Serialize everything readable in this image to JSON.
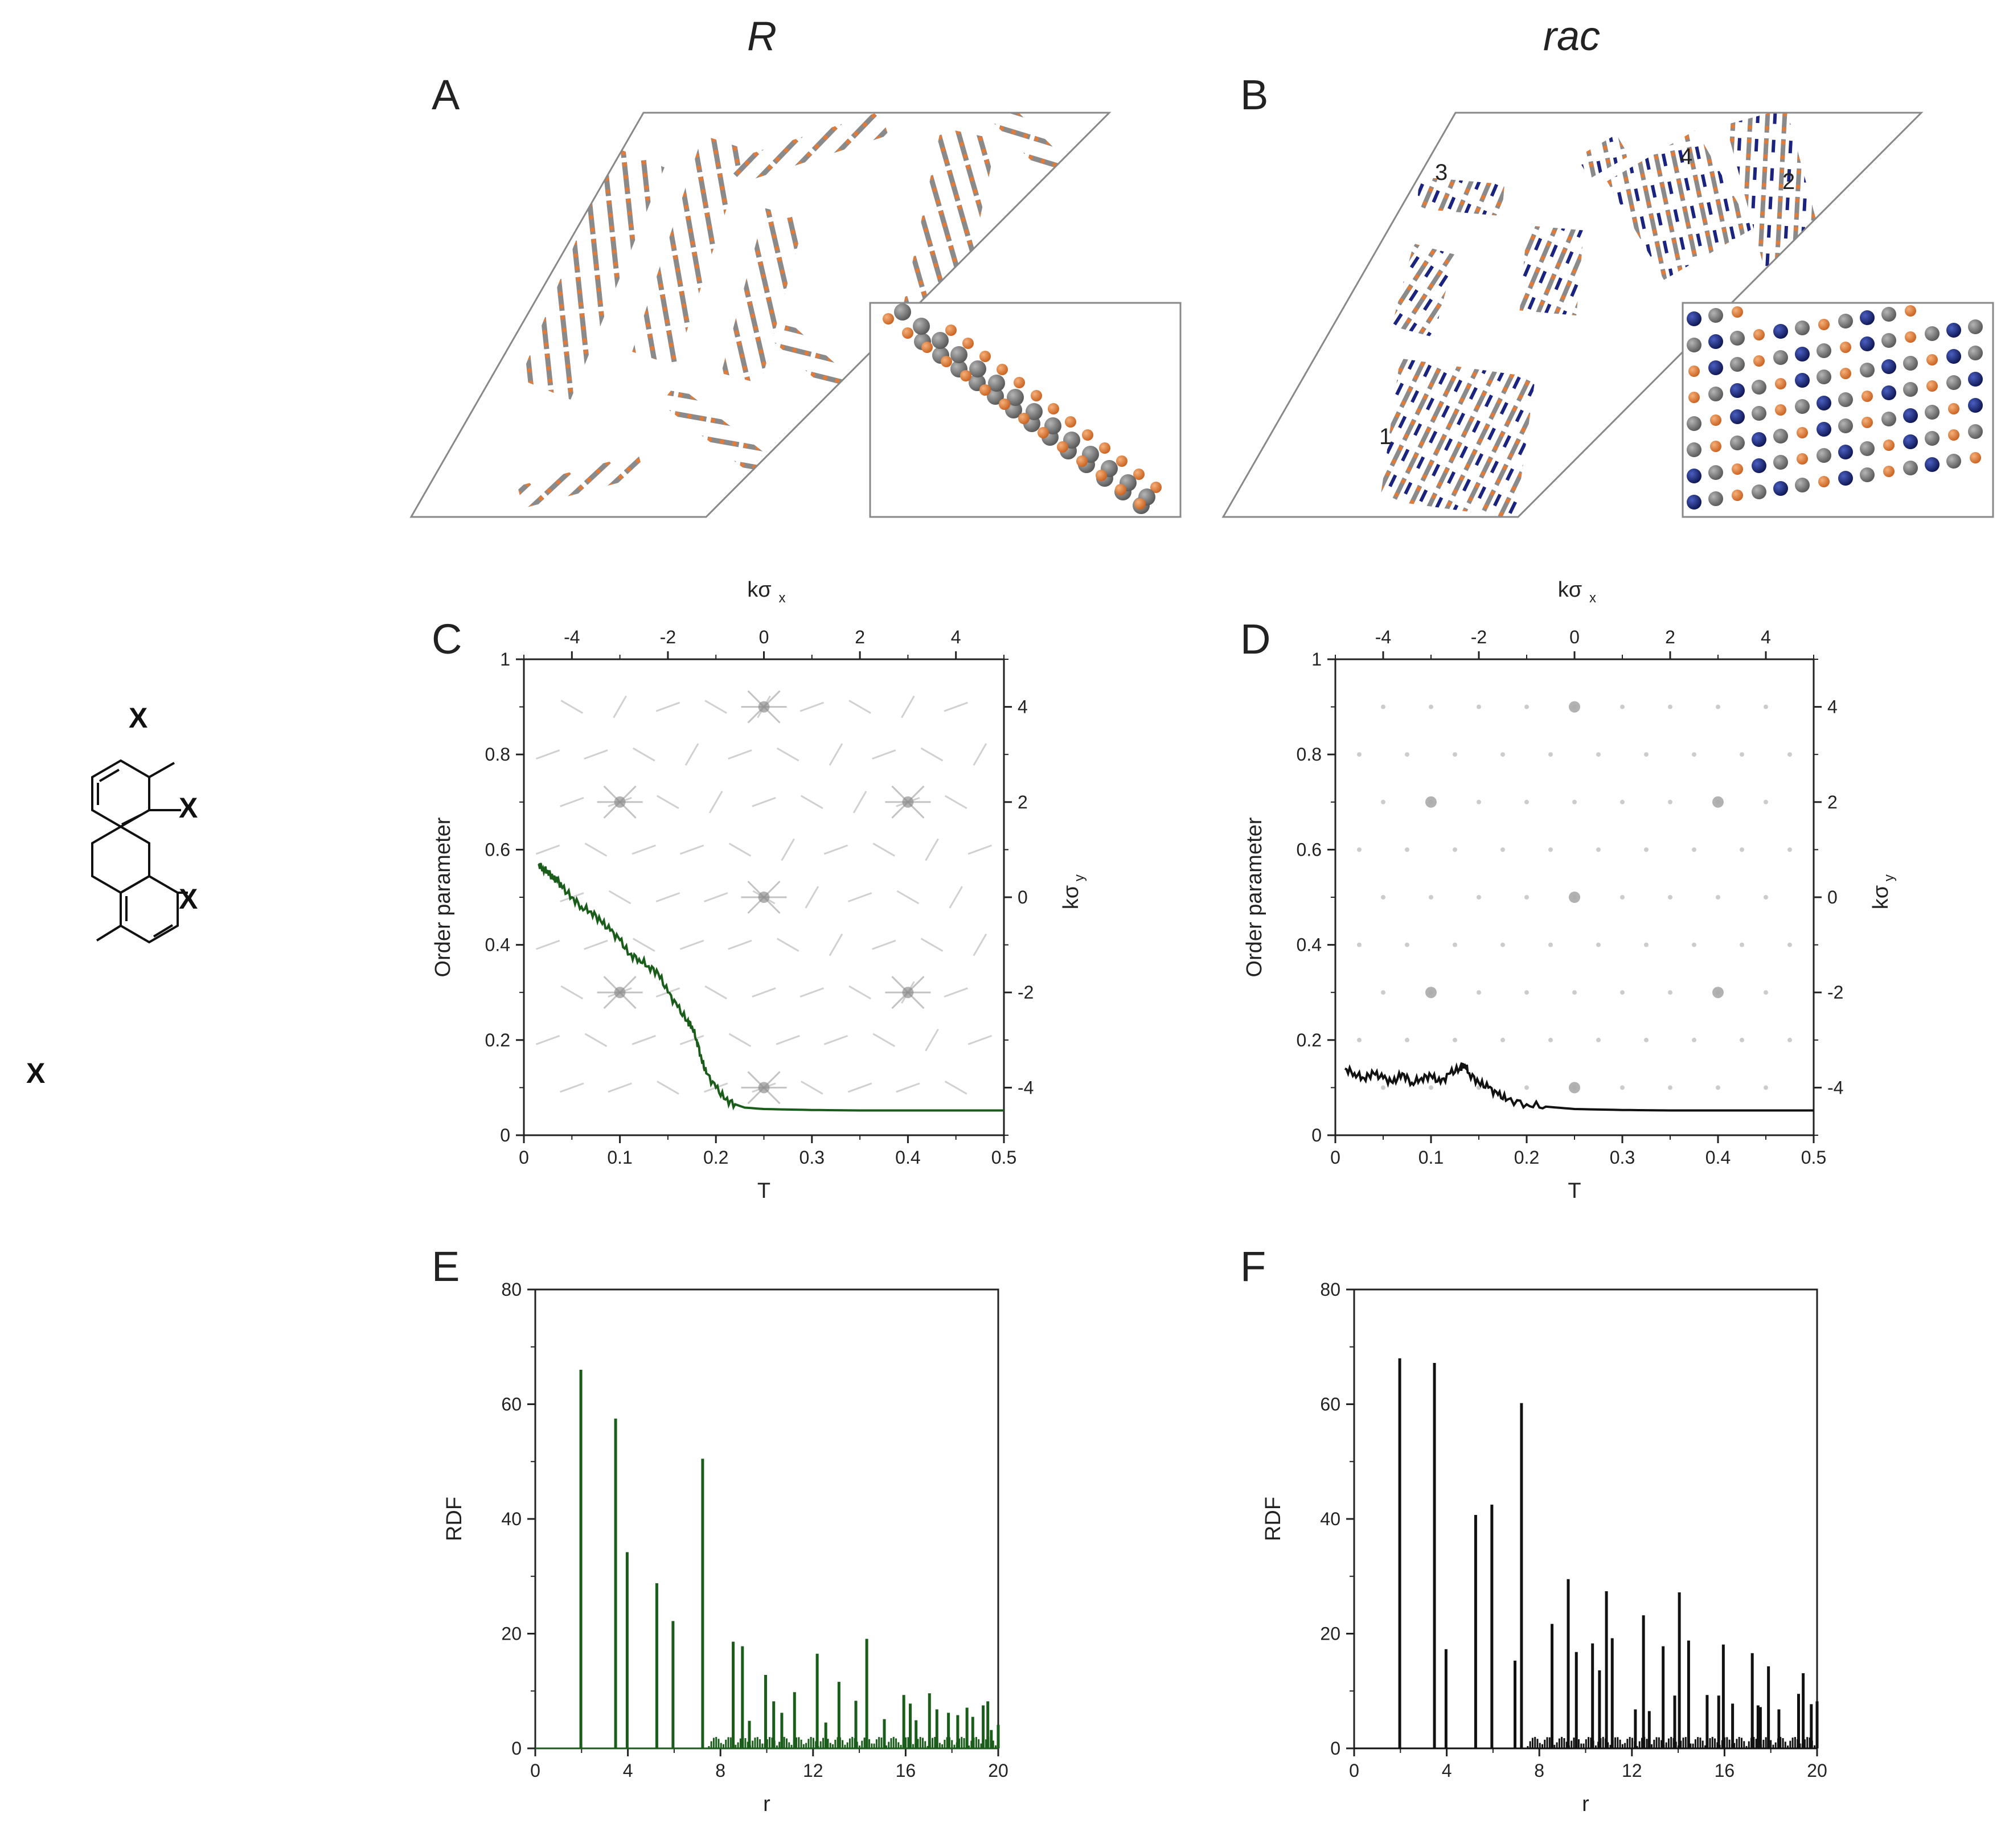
{
  "titles": {
    "left": "R",
    "right": "rac"
  },
  "panel_letters": [
    "A",
    "B",
    "C",
    "D",
    "E",
    "F"
  ],
  "molecule": {
    "substituent": "X"
  },
  "cluster_labels": [
    "1",
    "2",
    "3",
    "4"
  ],
  "chart_data": [
    {
      "id": "C",
      "type": "line",
      "title": "",
      "xlabel": "T",
      "ylabel": "Order parameter",
      "xlim": [
        0,
        0.5
      ],
      "ylim": [
        0,
        1
      ],
      "x_ticks": [
        "0",
        "0.1",
        "0.2",
        "0.3",
        "0.4",
        "0.5"
      ],
      "y_ticks": [
        "0",
        "0.2",
        "0.4",
        "0.6",
        "0.8",
        "1"
      ],
      "top_axis": {
        "label": "kσ",
        "sub": "x",
        "range": [
          -5,
          5
        ],
        "ticks": [
          "-4",
          "-2",
          "0",
          "2",
          "4"
        ]
      },
      "right_axis": {
        "label": "kσ",
        "sub": "y",
        "range": [
          -5,
          5
        ],
        "ticks": [
          "-4",
          "-2",
          "0",
          "2",
          "4"
        ]
      },
      "color": "#1a5c1a",
      "series": [
        {
          "name": "order parameter (R)",
          "x": [
            0.015,
            0.02,
            0.025,
            0.03,
            0.035,
            0.04,
            0.05,
            0.06,
            0.07,
            0.08,
            0.09,
            0.1,
            0.11,
            0.12,
            0.13,
            0.14,
            0.15,
            0.16,
            0.17,
            0.175,
            0.18,
            0.185,
            0.19,
            0.2,
            0.21,
            0.22,
            0.23,
            0.25,
            0.3,
            0.35,
            0.4,
            0.45,
            0.5
          ],
          "y": [
            0.57,
            0.56,
            0.555,
            0.54,
            0.535,
            0.52,
            0.5,
            0.48,
            0.47,
            0.45,
            0.43,
            0.41,
            0.38,
            0.37,
            0.355,
            0.34,
            0.3,
            0.27,
            0.24,
            0.23,
            0.2,
            0.16,
            0.13,
            0.1,
            0.075,
            0.065,
            0.058,
            0.055,
            0.053,
            0.052,
            0.052,
            0.052,
            0.052
          ]
        }
      ]
    },
    {
      "id": "D",
      "type": "line",
      "title": "",
      "xlabel": "T",
      "ylabel": "Order parameter",
      "xlim": [
        0,
        0.5
      ],
      "ylim": [
        0,
        1
      ],
      "x_ticks": [
        "0",
        "0.1",
        "0.2",
        "0.3",
        "0.4",
        "0.5"
      ],
      "y_ticks": [
        "0",
        "0.2",
        "0.4",
        "0.6",
        "0.8",
        "1"
      ],
      "top_axis": {
        "label": "kσ",
        "sub": "x",
        "range": [
          -5,
          5
        ],
        "ticks": [
          "-4",
          "-2",
          "0",
          "2",
          "4"
        ]
      },
      "right_axis": {
        "label": "kσ",
        "sub": "y",
        "range": [
          -5,
          5
        ],
        "ticks": [
          "-4",
          "-2",
          "0",
          "2",
          "4"
        ]
      },
      "color": "#111111",
      "series": [
        {
          "name": "order parameter (rac)",
          "x": [
            0.01,
            0.02,
            0.03,
            0.04,
            0.05,
            0.06,
            0.07,
            0.08,
            0.09,
            0.1,
            0.11,
            0.12,
            0.13,
            0.135,
            0.14,
            0.15,
            0.16,
            0.17,
            0.18,
            0.2,
            0.22,
            0.25,
            0.3,
            0.35,
            0.4,
            0.45,
            0.5
          ],
          "y": [
            0.14,
            0.13,
            0.12,
            0.13,
            0.12,
            0.11,
            0.13,
            0.11,
            0.12,
            0.125,
            0.11,
            0.13,
            0.14,
            0.15,
            0.13,
            0.11,
            0.1,
            0.085,
            0.075,
            0.065,
            0.06,
            0.055,
            0.053,
            0.052,
            0.052,
            0.052,
            0.052
          ]
        }
      ]
    },
    {
      "id": "E",
      "type": "bar",
      "title": "",
      "xlabel": "r",
      "ylabel": "RDF",
      "xlim": [
        0,
        20
      ],
      "ylim": [
        0,
        80
      ],
      "x_ticks": [
        "0",
        "4",
        "8",
        "12",
        "16",
        "20"
      ],
      "y_ticks": [
        "0",
        "20",
        "40",
        "60",
        "80"
      ],
      "color": "#1a5c1a",
      "x": [
        1.97,
        3.47,
        3.97,
        5.25,
        5.95,
        7.23,
        8.55,
        8.95,
        9.25,
        9.95,
        10.3,
        10.65,
        11.2,
        12.18,
        12.55,
        13.12,
        13.85,
        14.32,
        15.08,
        15.92,
        16.2,
        16.45,
        17.03,
        17.35,
        17.85,
        18.25,
        18.65,
        18.9,
        19.35,
        19.55,
        19.7,
        20.0
      ],
      "values": [
        66,
        57.5,
        34.2,
        28.8,
        22.2,
        50.5,
        18.6,
        17.8,
        4.8,
        12.8,
        8.2,
        6.2,
        9.8,
        16.5,
        4.5,
        11.6,
        8.3,
        19.1,
        5.1,
        9.3,
        7.8,
        4.9,
        9.6,
        6.8,
        6.2,
        5.8,
        7.1,
        5.5,
        7.5,
        8.2,
        3.2,
        4.1
      ]
    },
    {
      "id": "F",
      "type": "bar",
      "title": "",
      "xlabel": "r",
      "ylabel": "RDF",
      "xlim": [
        0,
        20
      ],
      "ylim": [
        0,
        80
      ],
      "x_ticks": [
        "0",
        "4",
        "8",
        "12",
        "16",
        "20"
      ],
      "y_ticks": [
        "0",
        "20",
        "40",
        "60",
        "80"
      ],
      "color": "#111111",
      "x": [
        1.97,
        3.47,
        3.97,
        5.25,
        5.95,
        6.95,
        7.23,
        8.55,
        9.25,
        9.6,
        10.3,
        10.6,
        10.9,
        11.15,
        12.15,
        12.5,
        12.75,
        13.35,
        13.85,
        14.05,
        14.45,
        15.25,
        15.75,
        15.95,
        16.35,
        17.2,
        17.45,
        17.55,
        17.9,
        18.35,
        19.2,
        19.4,
        19.75,
        20.0
      ],
      "values": [
        68,
        67.2,
        17.3,
        40.7,
        42.5,
        15.3,
        60.2,
        21.7,
        29.5,
        16.8,
        18.3,
        13.6,
        27.4,
        19.2,
        6.8,
        23.2,
        6.5,
        17.8,
        9.2,
        27.2,
        18.8,
        9.3,
        9.2,
        18.1,
        7.8,
        16.6,
        7.5,
        7.2,
        14.3,
        6.8,
        9.5,
        13.1,
        7.7,
        8.2
      ]
    }
  ]
}
